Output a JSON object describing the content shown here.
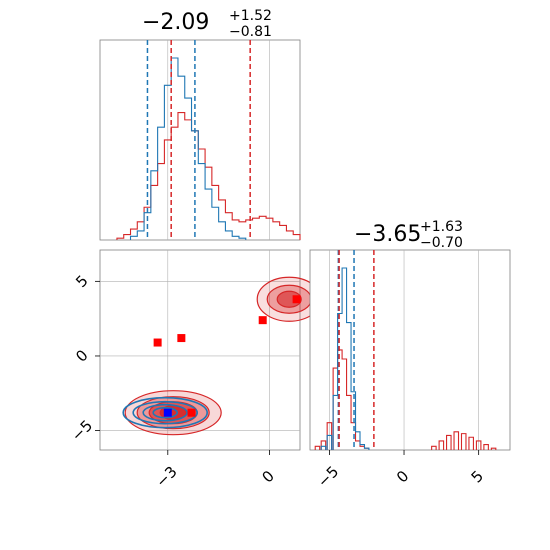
{
  "colors": {
    "blue": "#1f77b4",
    "red": "#d62728",
    "grid": "#b0b0b0",
    "frame": "#808080"
  },
  "chart_data": {
    "type": "corner",
    "parameters": [
      {
        "title": "−2.09",
        "sup": "+1.52",
        "sub": "−0.81",
        "median": -2.09,
        "lower": -2.9,
        "upper": -0.57,
        "range": [
          -5.0,
          0.9
        ]
      },
      {
        "title": "−3.65",
        "sup": "+1.63",
        "sub": "−0.70",
        "median": -3.65,
        "lower": -4.35,
        "upper": -2.02,
        "range": [
          -6.3,
          7.1
        ]
      }
    ],
    "ticks_x": {
      "param1": [
        {
          "value": -3,
          "label": "−3"
        },
        {
          "value": 0,
          "label": "0"
        }
      ],
      "param2": [
        {
          "value": -5,
          "label": "−5"
        },
        {
          "value": 0,
          "label": "0"
        },
        {
          "value": 5,
          "label": "5"
        }
      ]
    },
    "ticks_y": {
      "param2": [
        {
          "value": 5,
          "label": "5"
        },
        {
          "value": 0,
          "label": "0"
        },
        {
          "value": -5,
          "label": "−5"
        }
      ]
    },
    "quantile_lines": {
      "blue_param1": [
        -3.6,
        -2.2
      ],
      "red_param1": [
        -2.9,
        -0.57
      ],
      "blue_param2": [
        -4.4,
        -3.35
      ],
      "red_param2": [
        -4.35,
        -2.02
      ]
    },
    "series": [
      {
        "color": "blue",
        "hist1_centers": [
          -4.0,
          -3.8,
          -3.6,
          -3.4,
          -3.2,
          -3.0,
          -2.8,
          -2.6,
          -2.4,
          -2.2,
          -2.0,
          -1.8,
          -1.6,
          -1.4,
          -1.2,
          -1.0,
          -0.8
        ],
        "hist1_counts": [
          0.02,
          0.05,
          0.15,
          0.38,
          0.62,
          0.85,
          1.0,
          0.9,
          0.78,
          0.6,
          0.42,
          0.28,
          0.18,
          0.1,
          0.05,
          0.02,
          0.01
        ],
        "hist2_centers": [
          -5.4,
          -5.0,
          -4.6,
          -4.3,
          -4.0,
          -3.7,
          -3.4,
          -3.1,
          -2.8,
          -2.5
        ],
        "hist2_counts": [
          0.02,
          0.08,
          0.3,
          0.75,
          1.0,
          0.7,
          0.32,
          0.1,
          0.03,
          0.01
        ],
        "contour_center": [
          -2.9,
          -3.8
        ],
        "marker": [
          -3.0,
          -3.8
        ]
      },
      {
        "color": "red",
        "hist1_centers": [
          -4.4,
          -4.2,
          -4.0,
          -3.8,
          -3.6,
          -3.4,
          -3.2,
          -3.0,
          -2.8,
          -2.6,
          -2.4,
          -2.2,
          -2.0,
          -1.8,
          -1.6,
          -1.4,
          -1.2,
          -1.0,
          -0.8,
          -0.6,
          -0.4,
          -0.2,
          0.0,
          0.2,
          0.4,
          0.6,
          0.8
        ],
        "hist1_counts": [
          0.01,
          0.03,
          0.06,
          0.1,
          0.18,
          0.3,
          0.42,
          0.55,
          0.62,
          0.7,
          0.66,
          0.6,
          0.5,
          0.4,
          0.3,
          0.22,
          0.15,
          0.11,
          0.1,
          0.11,
          0.12,
          0.13,
          0.12,
          0.1,
          0.08,
          0.05,
          0.03
        ],
        "hist2_centers": [
          -5.8,
          -5.4,
          -5.0,
          -4.6,
          -4.3,
          -4.0,
          -3.7,
          -3.4,
          -3.1,
          -2.8,
          -2.5,
          2.0,
          2.5,
          3.0,
          3.5,
          4.0,
          4.5,
          5.0,
          5.5,
          6.0
        ],
        "hist2_counts": [
          0.02,
          0.05,
          0.15,
          0.45,
          0.55,
          0.5,
          0.3,
          0.15,
          0.05,
          0.02,
          0.01,
          0.02,
          0.05,
          0.08,
          0.1,
          0.09,
          0.07,
          0.05,
          0.03,
          0.01
        ],
        "contour_centers": [
          [
            -2.9,
            -3.8
          ],
          [
            0.7,
            3.8
          ]
        ],
        "markers": [
          [
            -2.3,
            -3.8
          ],
          [
            0.8,
            3.8
          ],
          [
            -0.2,
            2.4
          ],
          [
            -2.6,
            1.2
          ],
          [
            -3.3,
            0.9
          ]
        ]
      }
    ]
  }
}
